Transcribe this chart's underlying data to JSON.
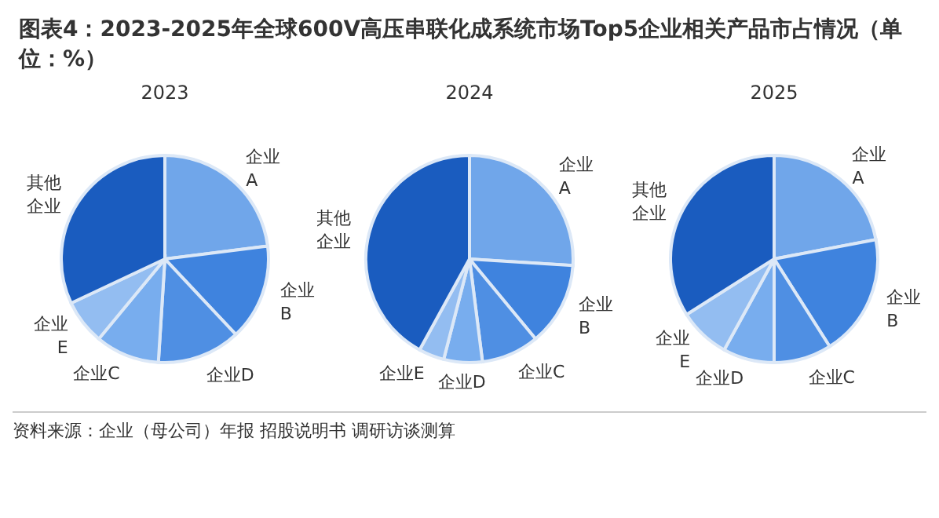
{
  "chart_data": [
    {
      "type": "pie",
      "title": "图表4：2023-2025年全球600V高压串联化成系统市场Top5企业相关产品市占情况（单位：%）",
      "subtitle": "2023",
      "annotations": [
        "资料来源：企业（母公司）年报 招股说明书 调研访谈测算"
      ],
      "categories": [
        "企业A",
        "企业B",
        "企业D",
        "企业C",
        "企业E",
        "其他企业"
      ],
      "values": [
        23,
        15,
        13,
        10,
        7,
        32
      ],
      "colors": [
        "#70a6ea",
        "#3f83de",
        "#4f8fe3",
        "#78adee",
        "#93bdf1",
        "#1a5cbf"
      ],
      "legend": false
    },
    {
      "type": "pie",
      "title": "2024",
      "categories": [
        "企业A",
        "企业B",
        "企业C",
        "企业D",
        "企业E",
        "其他企业"
      ],
      "values": [
        26,
        13,
        9,
        6,
        4,
        42
      ],
      "colors": [
        "#70a6ea",
        "#3f83de",
        "#4f8fe3",
        "#78adee",
        "#93bdf1",
        "#1a5cbf"
      ],
      "legend": false
    },
    {
      "type": "pie",
      "title": "2025",
      "categories": [
        "企业A",
        "企业B",
        "企业C",
        "企业D",
        "企业E",
        "其他企业"
      ],
      "values": [
        22,
        19,
        9,
        8,
        8,
        34
      ],
      "colors": [
        "#70a6ea",
        "#3f83de",
        "#4f8fe3",
        "#78adee",
        "#93bdf1",
        "#1a5cbf"
      ],
      "legend": false
    }
  ]
}
